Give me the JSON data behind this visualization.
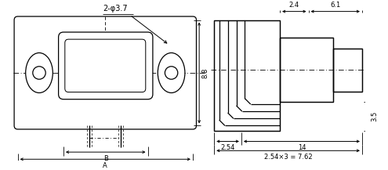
{
  "fig_width": 4.95,
  "fig_height": 2.17,
  "dpi": 100,
  "line_color": "#000000",
  "bg_color": "#ffffff",
  "annotations": {
    "phi_label": "2-φ3.7",
    "dim_88": "8.8",
    "dim_B": "B",
    "dim_A": "A",
    "dim_24": "2.4",
    "dim_61": "6.1",
    "dim_35": "3.5",
    "dim_254": "2.54",
    "dim_14": "14",
    "dim_762": "2.54×3 = 7.62"
  }
}
